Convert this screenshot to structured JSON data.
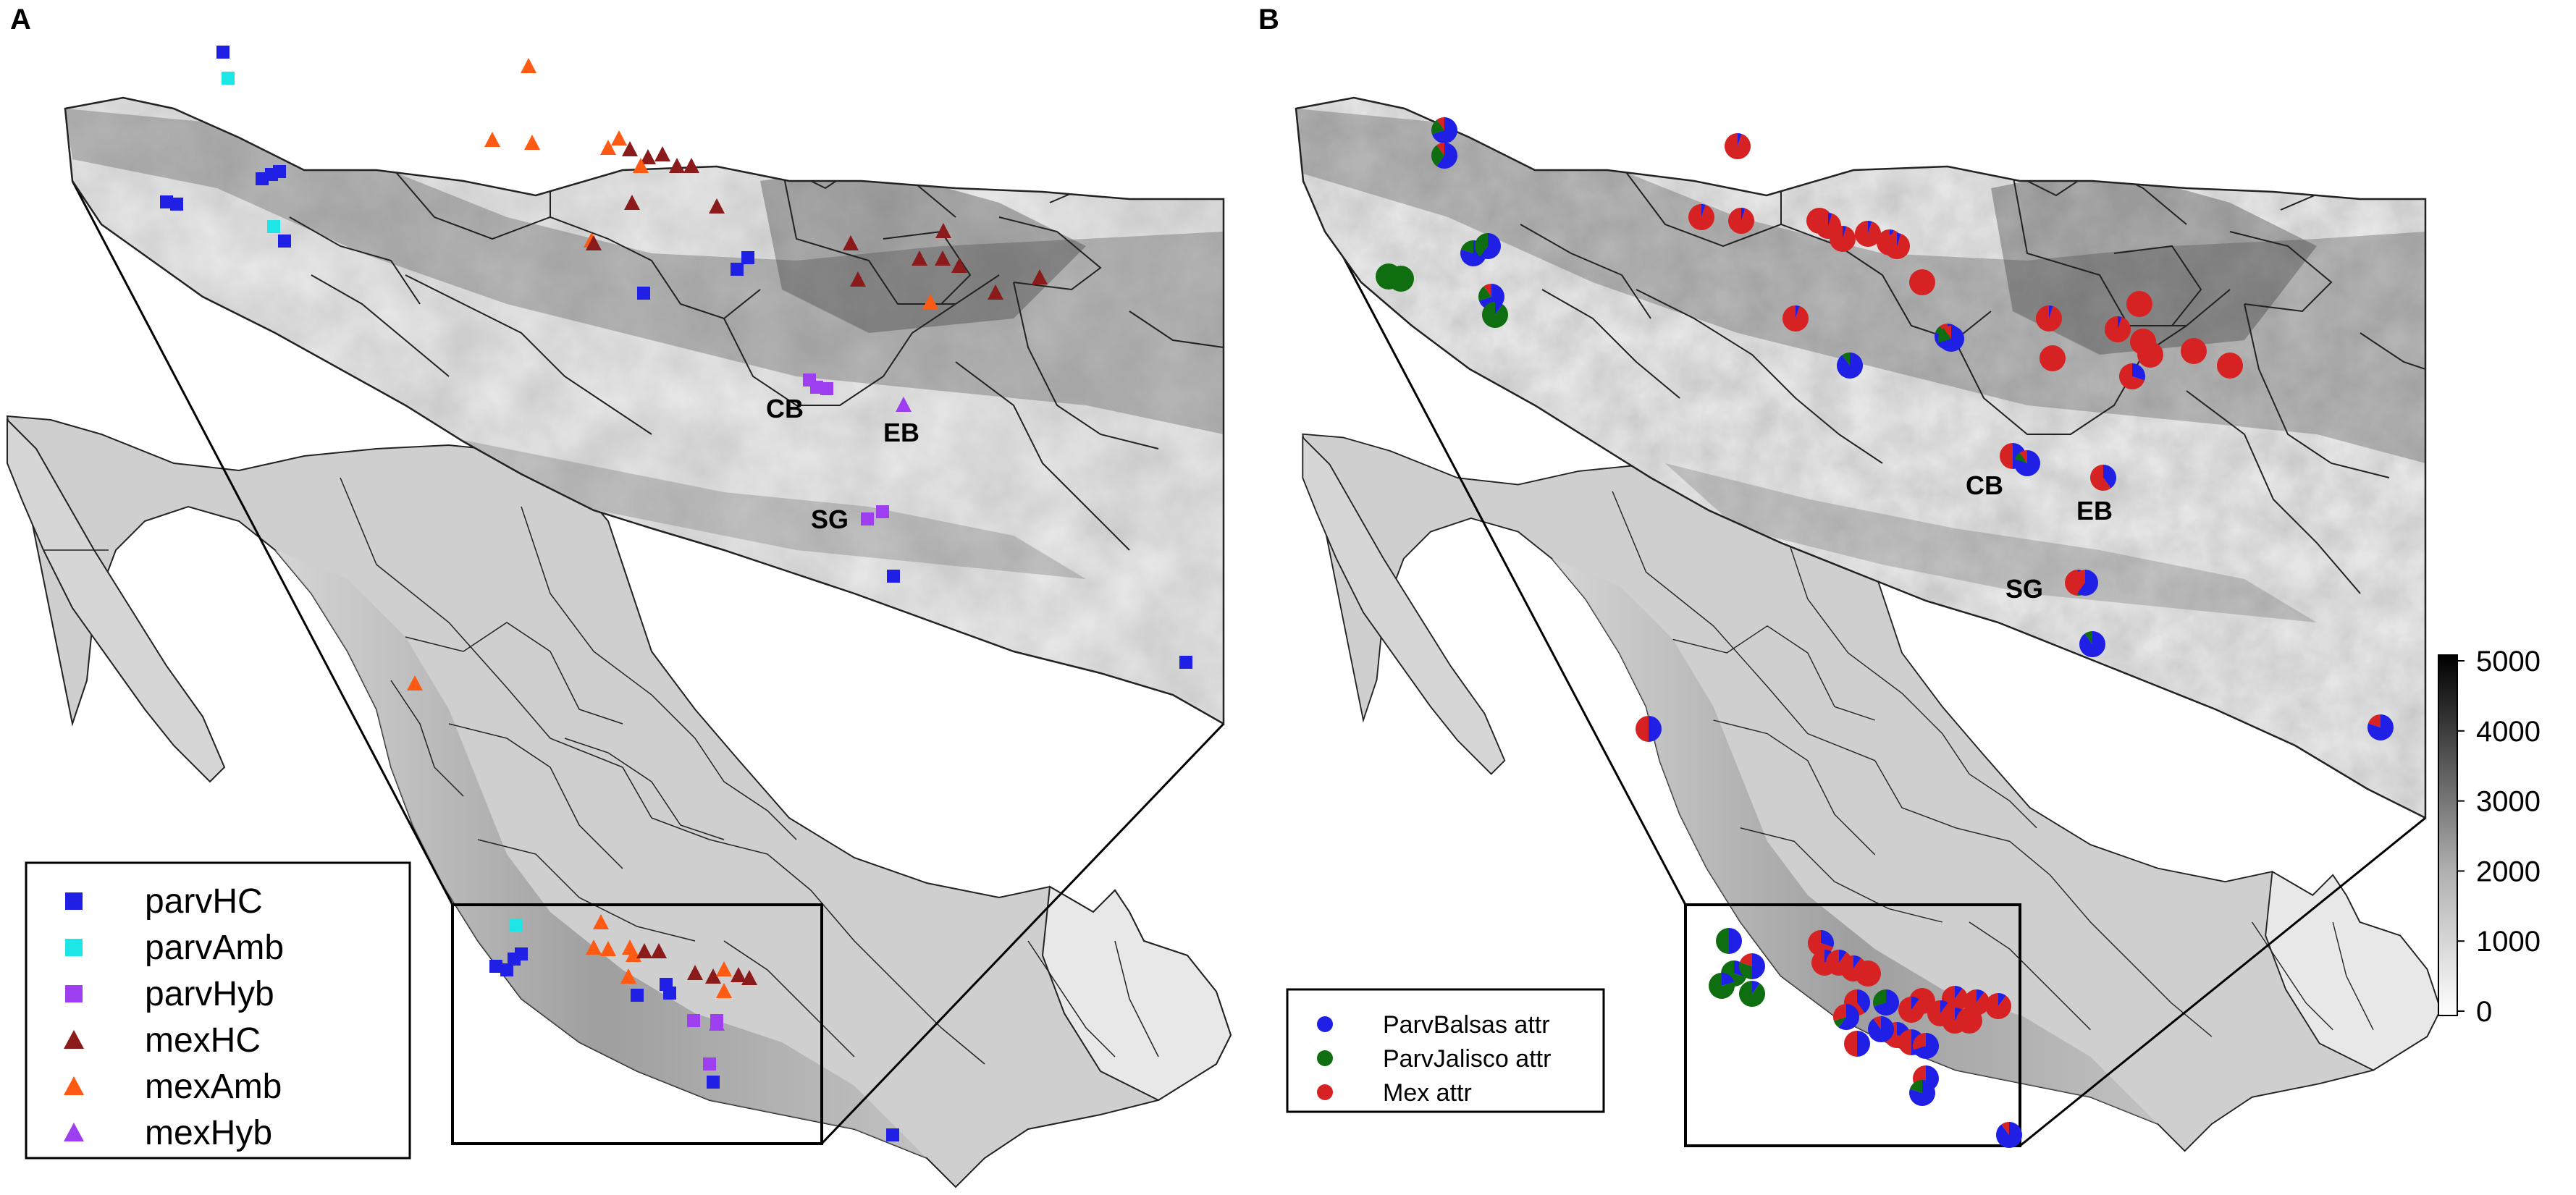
{
  "panels": {
    "a": {
      "letter": "A"
    },
    "b": {
      "letter": "B"
    }
  },
  "site_labels": {
    "cb": "CB",
    "eb": "EB",
    "sg": "SG"
  },
  "legend_a": {
    "items": [
      {
        "label": "parvHC",
        "color": "#1f1fe6",
        "shape": "square"
      },
      {
        "label": "parvAmb",
        "color": "#1fe6e6",
        "shape": "square"
      },
      {
        "label": "parvHyb",
        "color": "#9d3ff0",
        "shape": "square"
      },
      {
        "label": "mexHC",
        "color": "#8b1a1a",
        "shape": "triangle"
      },
      {
        "label": "mexAmb",
        "color": "#ff5a14",
        "shape": "triangle"
      },
      {
        "label": "mexHyb",
        "color": "#9d3ff0",
        "shape": "triangle"
      }
    ]
  },
  "legend_b": {
    "items": [
      {
        "label": "ParvBalsas attr",
        "color": "#1f1fe6"
      },
      {
        "label": "ParvJalisco attr",
        "color": "#0f6e0f"
      },
      {
        "label": "Mex attr",
        "color": "#d62222"
      }
    ]
  },
  "colorbar": {
    "ticks": [
      "5000",
      "4000",
      "3000",
      "2000",
      "1000",
      "0"
    ],
    "range": [
      0,
      5000
    ],
    "scale": "white-to-black grayscale (elevation)"
  }
}
